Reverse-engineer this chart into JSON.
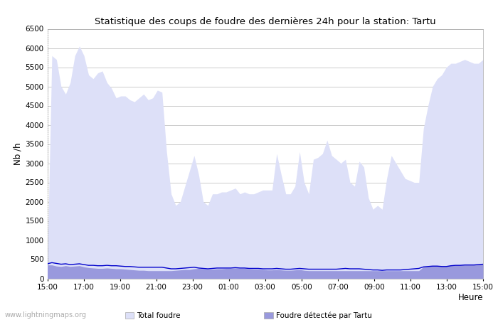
{
  "title": "Statistique des coups de foudre des dernières 24h pour la station: Tartu",
  "xlabel": "Heure",
  "ylabel": "Nb /h",
  "xlim_labels": [
    "15:00",
    "17:00",
    "19:00",
    "21:00",
    "23:00",
    "01:00",
    "03:00",
    "05:00",
    "07:00",
    "09:00",
    "11:00",
    "13:00",
    "15:00"
  ],
  "ylim": [
    0,
    6500
  ],
  "yticks": [
    0,
    500,
    1000,
    1500,
    2000,
    2500,
    3000,
    3500,
    4000,
    4500,
    5000,
    5500,
    6000,
    6500
  ],
  "bg_color": "#ffffff",
  "plot_bg_color": "#ffffff",
  "grid_color": "#cccccc",
  "watermark": "www.lightningmaps.org",
  "legend": {
    "total_foudre_label": "Total foudre",
    "total_foudre_color": "#dde0f8",
    "moyenne_color": "#0000cc",
    "tartu_label": "Foudré détectée par Tartu",
    "tartu_color": "#9999dd"
  },
  "total_foudre_y": [
    350,
    5800,
    5700,
    5000,
    4800,
    5100,
    5800,
    6050,
    5800,
    5300,
    5200,
    5350,
    5400,
    5100,
    4950,
    4700,
    4750,
    4750,
    4650,
    4600,
    4700,
    4800,
    4650,
    4700,
    4900,
    4850,
    3300,
    2200,
    1900,
    2000,
    2400,
    2800,
    3200,
    2700,
    2000,
    1900,
    2200,
    2200,
    2250,
    2250,
    2300,
    2350,
    2200,
    2250,
    2200,
    2200,
    2250,
    2300,
    2300,
    2300,
    3250,
    2700,
    2200,
    2200,
    2400,
    3300,
    2500,
    2200,
    3100,
    3150,
    3250,
    3600,
    3200,
    3100,
    3000,
    3100,
    2500,
    2400,
    3050,
    2900,
    2100,
    1800,
    1900,
    1800,
    2600,
    3200,
    3000,
    2800,
    2600,
    2550,
    2500,
    2500,
    3900,
    4500,
    5000,
    5200,
    5300,
    5500,
    5600,
    5600,
    5650,
    5700,
    5650,
    5600,
    5600,
    5700
  ],
  "tartu_y": [
    350,
    350,
    320,
    310,
    330,
    310,
    320,
    330,
    300,
    280,
    270,
    260,
    260,
    270,
    260,
    250,
    250,
    240,
    230,
    220,
    210,
    210,
    200,
    200,
    200,
    200,
    200,
    200,
    210,
    220,
    230,
    230,
    250,
    260,
    250,
    240,
    240,
    250,
    250,
    260,
    260,
    270,
    260,
    260,
    250,
    240,
    240,
    230,
    220,
    220,
    230,
    220,
    210,
    210,
    220,
    230,
    210,
    200,
    200,
    200,
    200,
    200,
    200,
    200,
    200,
    200,
    200,
    200,
    200,
    200,
    200,
    200,
    200,
    200,
    200,
    200,
    200,
    200,
    200,
    200,
    200,
    200,
    300,
    320,
    330,
    330,
    320,
    320,
    340,
    350,
    350,
    360,
    360,
    360,
    370,
    380
  ],
  "moyenne_y": [
    380,
    410,
    390,
    370,
    380,
    360,
    370,
    380,
    360,
    340,
    340,
    330,
    330,
    340,
    330,
    330,
    320,
    310,
    310,
    300,
    290,
    290,
    290,
    290,
    290,
    290,
    270,
    250,
    250,
    260,
    270,
    280,
    290,
    270,
    260,
    250,
    260,
    270,
    270,
    270,
    270,
    280,
    270,
    270,
    260,
    260,
    260,
    250,
    250,
    250,
    260,
    250,
    240,
    240,
    250,
    260,
    250,
    240,
    240,
    240,
    240,
    240,
    240,
    240,
    250,
    260,
    250,
    250,
    250,
    240,
    230,
    220,
    220,
    210,
    220,
    220,
    220,
    220,
    230,
    240,
    250,
    260,
    300,
    310,
    320,
    320,
    310,
    310,
    330,
    340,
    340,
    350,
    350,
    350,
    360,
    370
  ]
}
